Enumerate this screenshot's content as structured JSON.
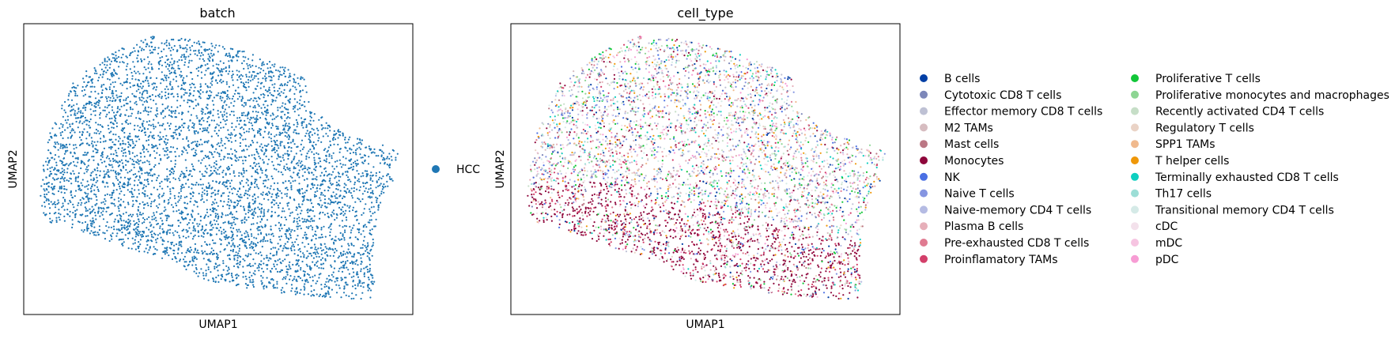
{
  "chart_data": [
    {
      "type": "scatter",
      "title": "batch",
      "xlabel": "UMAP1",
      "ylabel": "UMAP2",
      "grid": false,
      "xticks": false,
      "yticks": false,
      "legend_position": "right",
      "legend": [
        {
          "name": "HCC",
          "color": "#1f77b4"
        }
      ]
    },
    {
      "type": "scatter",
      "title": "cell_type",
      "xlabel": "UMAP1",
      "ylabel": "UMAP2",
      "grid": false,
      "xticks": false,
      "yticks": false,
      "legend_position": "right",
      "legend": [
        {
          "name": "B cells",
          "color": "#023fa5"
        },
        {
          "name": "Cytotoxic CD8 T cells",
          "color": "#7d87b9"
        },
        {
          "name": "Effector memory CD8 T cells",
          "color": "#bec1d4"
        },
        {
          "name": "M2 TAMs",
          "color": "#d6bcc0"
        },
        {
          "name": "Mast cells",
          "color": "#bb7784"
        },
        {
          "name": "Monocytes",
          "color": "#8e063b"
        },
        {
          "name": "NK",
          "color": "#4a6fe3"
        },
        {
          "name": "Naive T cells",
          "color": "#8595e1"
        },
        {
          "name": "Naive-memory CD4 T cells",
          "color": "#b5bbe3"
        },
        {
          "name": "Plasma B cells",
          "color": "#e6afb9"
        },
        {
          "name": "Pre-exhausted CD8 T cells",
          "color": "#e07b91"
        },
        {
          "name": "Proinflamatory TAMs",
          "color": "#d33f6a"
        },
        {
          "name": "Proliferative T cells",
          "color": "#11c638"
        },
        {
          "name": "Proliferative monocytes and macrophages",
          "color": "#8dd593"
        },
        {
          "name": "Recently activated CD4 T cells",
          "color": "#c6dec7"
        },
        {
          "name": "Regulatory T cells",
          "color": "#ead3c6"
        },
        {
          "name": "SPP1 TAMs",
          "color": "#f0b98d"
        },
        {
          "name": "T helper cells",
          "color": "#ef9708"
        },
        {
          "name": "Terminally exhausted CD8 T cells",
          "color": "#0fcfc0"
        },
        {
          "name": "Th17 cells",
          "color": "#9cded6"
        },
        {
          "name": "Transitional memory CD4 T cells",
          "color": "#d5eae7"
        },
        {
          "name": "cDC",
          "color": "#f3e1eb"
        },
        {
          "name": "mDC",
          "color": "#f6c4e1"
        },
        {
          "name": "pDC",
          "color": "#f79cd4"
        }
      ]
    }
  ]
}
